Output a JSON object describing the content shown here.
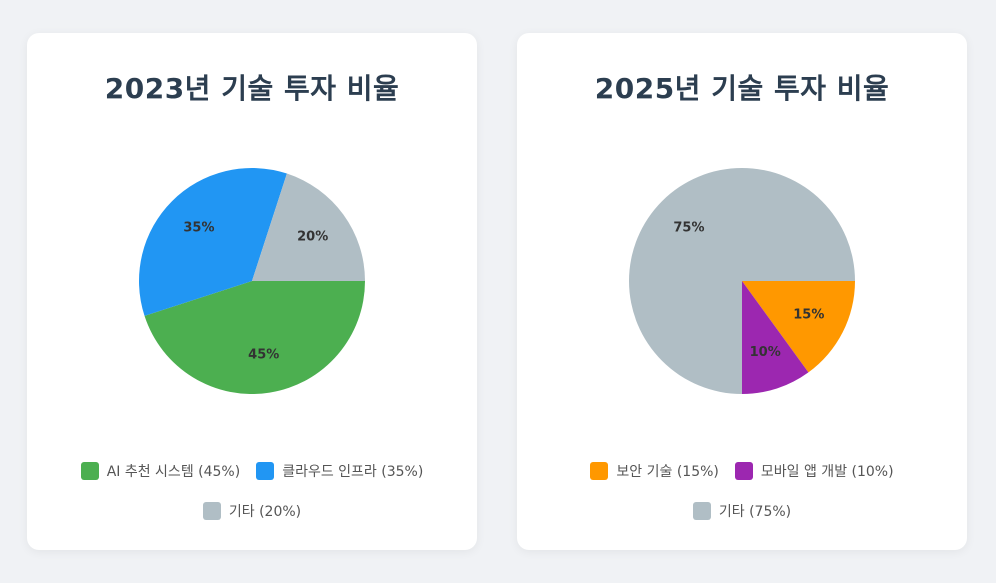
{
  "chart_data": [
    {
      "type": "pie",
      "title": "2023년 기술 투자 비율",
      "slices": [
        {
          "label": "AI 추천 시스템",
          "value": 45,
          "value_label": "45%",
          "legend": "AI 추천 시스템 (45%)",
          "color": "#4caf50"
        },
        {
          "label": "클라우드 인프라",
          "value": 35,
          "value_label": "35%",
          "legend": "클라우드 인프라 (35%)",
          "color": "#2196f3"
        },
        {
          "label": "기타",
          "value": 20,
          "value_label": "20%",
          "legend": "기타 (20%)",
          "color": "#b0bec5"
        }
      ],
      "legend_position": "bottom"
    },
    {
      "type": "pie",
      "title": "2025년 기술 투자 비율",
      "slices": [
        {
          "label": "보안 기술",
          "value": 15,
          "value_label": "15%",
          "legend": "보안 기술 (15%)",
          "color": "#ff9800"
        },
        {
          "label": "모바일 앱 개발",
          "value": 10,
          "value_label": "10%",
          "legend": "모바일 앱 개발 (10%)",
          "color": "#9c27b0"
        },
        {
          "label": "기타",
          "value": 75,
          "value_label": "75%",
          "legend": "기타 (75%)",
          "color": "#b0bec5"
        }
      ],
      "legend_position": "bottom"
    }
  ]
}
